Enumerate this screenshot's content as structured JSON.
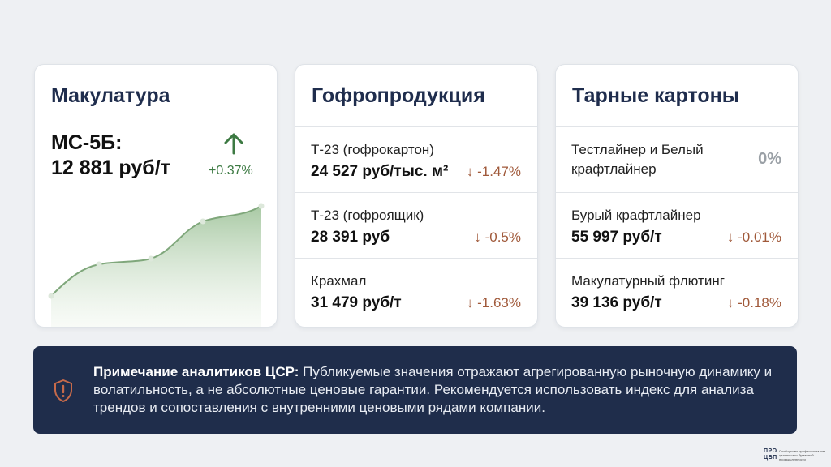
{
  "cards": {
    "waste_paper": {
      "title": "Макулатура",
      "item_label": "МС-5Б:",
      "price": "12 881 руб/т",
      "change": "+0.37%",
      "trend_icon": "arrow-up-icon",
      "trend_color": "#3d7a43"
    },
    "corrugated": {
      "title": "Гофропродукция",
      "rows": [
        {
          "label": "Т-23 (гофрокартон)",
          "value": "24 527 руб/тыс. м²",
          "change": "↓ -1.47%"
        },
        {
          "label": "Т-23 (гофроящик)",
          "value": "28 391 руб",
          "change": "↓ -0.5%"
        },
        {
          "label": "Крахмал",
          "value": "31 479 руб/т",
          "change": "↓ -1.63%"
        }
      ]
    },
    "containerboard": {
      "title": "Тарные картоны",
      "rows": [
        {
          "label": "Тестлайнер и Белый крафтлайнер",
          "change": "0%"
        },
        {
          "label": "Бурый крафтлайнер",
          "value": "55 997 руб/т",
          "change": "↓ -0.01%"
        },
        {
          "label": "Макулатурный флютинг",
          "value": "39 136 руб/т",
          "change": "↓ -0.18%"
        }
      ]
    }
  },
  "note": {
    "title": "Примечание аналитиков ЦСР:",
    "text": " Публикуемые значения отражают агрегированную рыночную динамику и волатильность, а не абсолютные ценовые гарантии. Рекомендуется использовать индекс для анализа трендов и сопоставления с внутренними ценовыми рядами компании.",
    "icon": "shield-alert-icon",
    "accent_color": "#c76a4a"
  },
  "footer": {
    "logo_line1": "ПРО",
    "logo_line2": "ЦБП",
    "logo_caption": "Сообщество профессионалов целлюлозно-бумажной промышленности"
  },
  "colors": {
    "negative": "#a0593a",
    "positive": "#3d7a43",
    "neutral": "#9aa0a6",
    "chart_fill": "#a9c9a4",
    "chart_line": "#7fa77b"
  }
}
